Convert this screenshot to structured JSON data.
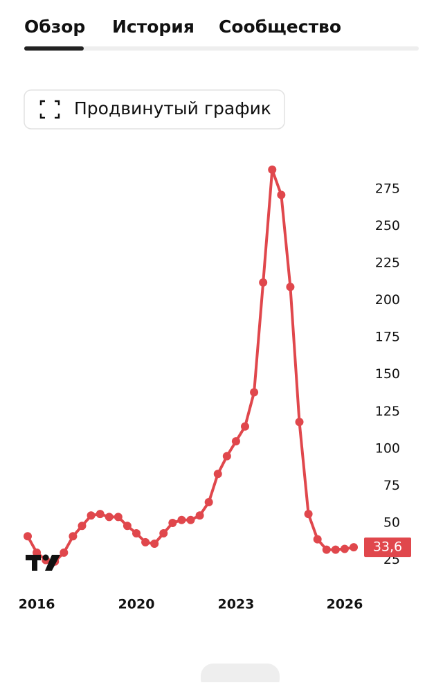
{
  "tabs": [
    "Обзор",
    "История",
    "Сообщество"
  ],
  "button": "Продвинутый график",
  "chart_data": {
    "type": "line",
    "categories": [
      null,
      "2016",
      null,
      null,
      null,
      null,
      null,
      null,
      null,
      null,
      null,
      null,
      "2020",
      null,
      null,
      null,
      null,
      null,
      null,
      null,
      null,
      null,
      null,
      "2023",
      null,
      null,
      null,
      null,
      null,
      null,
      null,
      null,
      null,
      null,
      null,
      "2026",
      null
    ],
    "series": [
      {
        "color": "#e0474c",
        "values": [
          41,
          30,
          25,
          24,
          30,
          41,
          48,
          55,
          56,
          54,
          54,
          48,
          43,
          37,
          36,
          43,
          50,
          52,
          52,
          55,
          64,
          83,
          95,
          105,
          115,
          138,
          212,
          288,
          271,
          209,
          118,
          56,
          39,
          32,
          32,
          32.5,
          33.6
        ],
        "value_labels": [
          null,
          null,
          null,
          null,
          null,
          null,
          null,
          null,
          null,
          null,
          null,
          null,
          null,
          null,
          null,
          null,
          null,
          null,
          null,
          null,
          null,
          null,
          null,
          null,
          null,
          null,
          null,
          null,
          null,
          null,
          null,
          null,
          null,
          null,
          null,
          null,
          "33,6"
        ]
      }
    ],
    "ylim": [
      15,
      295
    ],
    "yticks": [
      25,
      50,
      75,
      100,
      125,
      150,
      175,
      200,
      225,
      250,
      275
    ]
  }
}
